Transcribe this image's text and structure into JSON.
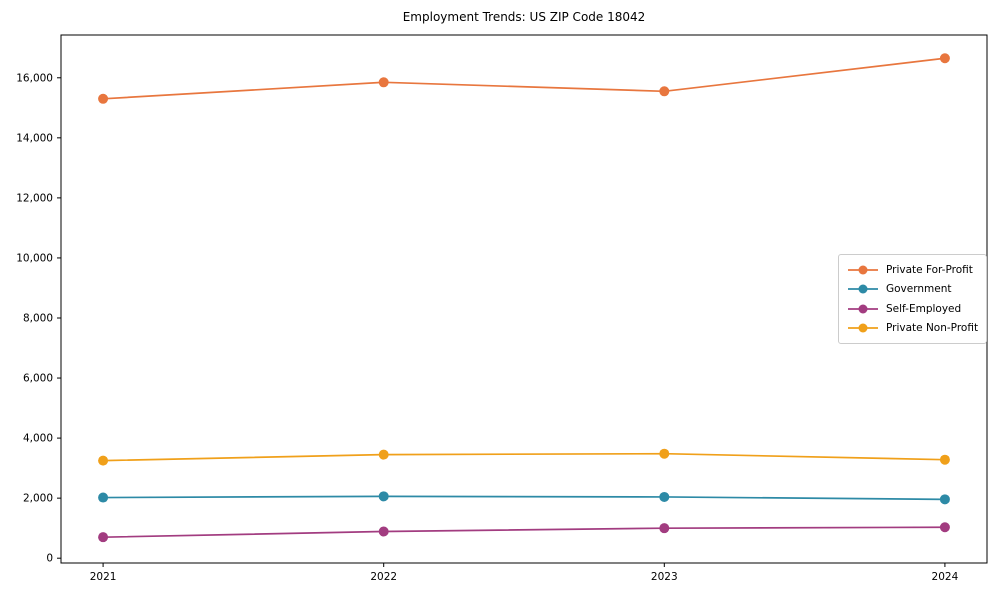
{
  "chart_data": {
    "type": "line",
    "title": "Employment Trends: US ZIP Code 18042",
    "xlabel": "",
    "ylabel": "",
    "x": [
      2021,
      2022,
      2023,
      2024
    ],
    "x_tick_labels": [
      "2021",
      "2022",
      "2023",
      "2024"
    ],
    "y_ticks": [
      0,
      2000,
      4000,
      6000,
      8000,
      10000,
      12000,
      14000,
      16000
    ],
    "y_tick_labels": [
      "0",
      "2,000",
      "4,000",
      "6,000",
      "8,000",
      "10,000",
      "12,000",
      "14,000",
      "16,000"
    ],
    "ylim": [
      -160,
      17425
    ],
    "xlim_padding": 0.15,
    "grid": false,
    "legend_position": "center-right",
    "series": [
      {
        "name": "Private For-Profit",
        "color": "#e8763e",
        "values": [
          15300,
          15850,
          15550,
          16650
        ]
      },
      {
        "name": "Government",
        "color": "#2d8aa6",
        "values": [
          2020,
          2060,
          2040,
          1960
        ]
      },
      {
        "name": "Self-Employed",
        "color": "#a23c80",
        "values": [
          700,
          890,
          1000,
          1030
        ]
      },
      {
        "name": "Private Non-Profit",
        "color": "#f0a01a",
        "values": [
          3250,
          3450,
          3480,
          3280
        ]
      }
    ],
    "colors": {
      "frame": "#000000",
      "tick_text": "#000000",
      "legend_border": "#cccccc"
    }
  }
}
